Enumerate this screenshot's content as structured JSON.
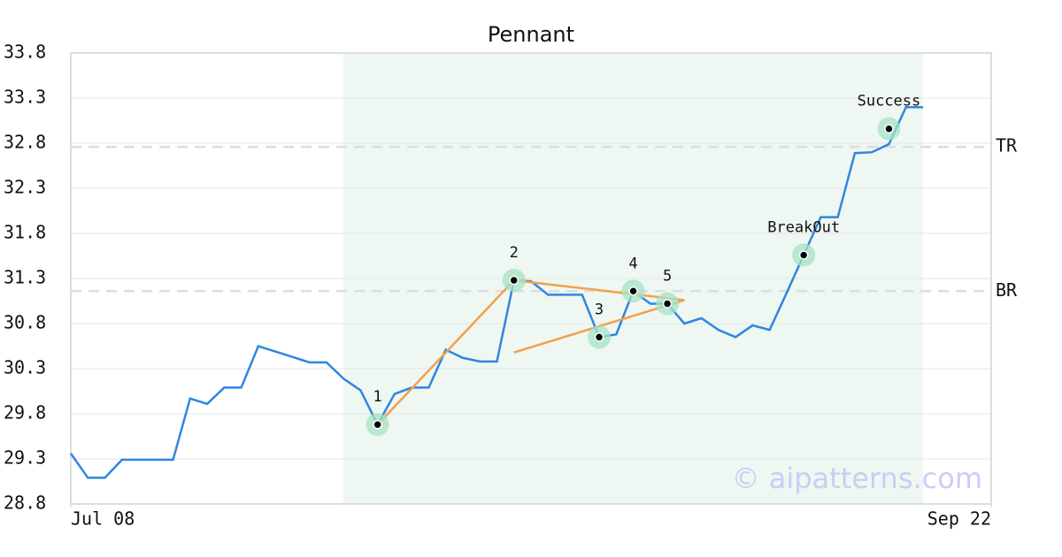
{
  "chart_data": {
    "type": "line",
    "title": "Pennant",
    "x": [
      0,
      1,
      2,
      3,
      4,
      5,
      6,
      7,
      8,
      9,
      10,
      11,
      12,
      13,
      14,
      15,
      16,
      17,
      18,
      19,
      20,
      21,
      22,
      23,
      24,
      25,
      26,
      27,
      28,
      29,
      30,
      31,
      32,
      33,
      34,
      35,
      36,
      37,
      38,
      39,
      40,
      41,
      42,
      43,
      44,
      45,
      46,
      47,
      48,
      49,
      50
    ],
    "series": [
      {
        "color": "#2f86e0",
        "values": [
          29.36,
          29.09,
          29.09,
          29.29,
          29.29,
          29.29,
          29.29,
          29.97,
          29.91,
          30.09,
          30.09,
          30.55,
          30.49,
          30.43,
          30.37,
          30.37,
          30.19,
          30.06,
          29.68,
          30.02,
          30.09,
          30.09,
          30.51,
          30.42,
          30.38,
          30.38,
          31.28,
          31.27,
          31.12,
          31.12,
          31.12,
          30.65,
          30.68,
          31.16,
          31.02,
          31.02,
          30.8,
          30.86,
          30.73,
          30.65,
          30.78,
          30.73,
          31.14,
          31.56,
          31.98,
          31.98,
          32.69,
          32.7,
          32.79,
          33.2,
          33.2
        ]
      }
    ],
    "xlim": [
      0,
      54
    ],
    "xticks": [
      {
        "value": 0,
        "label": "Jul 08"
      },
      {
        "value": 54,
        "label": "Sep 22"
      }
    ],
    "ylim": [
      28.8,
      33.8
    ],
    "yticks": [
      28.8,
      29.3,
      29.8,
      30.3,
      30.8,
      31.3,
      31.8,
      32.3,
      32.8,
      33.3,
      33.8
    ],
    "grid": true,
    "shaded_range": [
      16,
      50
    ],
    "shade_color": "#eef7f1",
    "reference_lines": [
      {
        "label": "TR",
        "value": 32.76
      },
      {
        "label": "BR",
        "value": 31.16
      }
    ],
    "trendline_color": "#f4a04a",
    "trendlines": [
      {
        "x": [
          18,
          26
        ],
        "y": [
          29.68,
          31.28
        ]
      },
      {
        "x": [
          26,
          36
        ],
        "y": [
          31.28,
          31.06
        ]
      },
      {
        "x": [
          26,
          36
        ],
        "y": [
          30.48,
          31.06
        ]
      }
    ],
    "pattern_points": [
      {
        "label": "1",
        "x": 18,
        "y": 29.68
      },
      {
        "label": "2",
        "x": 26,
        "y": 31.28
      },
      {
        "label": "3",
        "x": 31,
        "y": 30.65
      },
      {
        "label": "4",
        "x": 33,
        "y": 31.16
      },
      {
        "label": "5",
        "x": 35,
        "y": 31.02
      },
      {
        "label": "BreakOut",
        "x": 43,
        "y": 31.56
      },
      {
        "label": "Success",
        "x": 48,
        "y": 32.96
      }
    ],
    "watermark": "© aipatterns.com"
  }
}
